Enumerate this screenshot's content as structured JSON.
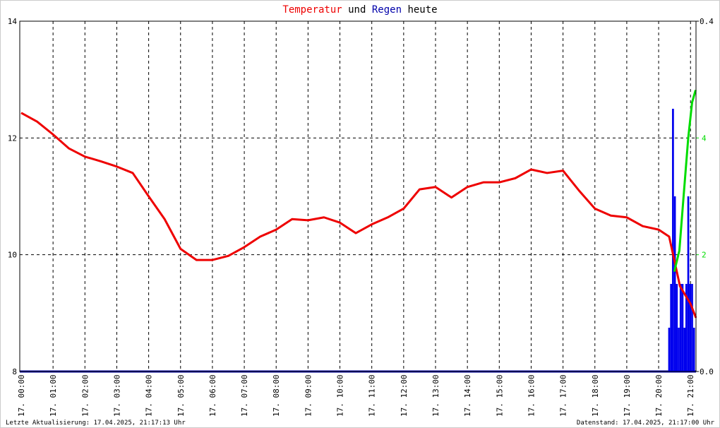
{
  "chart_data": {
    "type": "line",
    "title_connector": "und",
    "title_suffix": "heute",
    "footer_left": "Letzte Aktualisierung: 17.04.2025, 21:17:13 Uhr",
    "footer_right": "Datenstand: 17.04.2025, 21:17:00 Uhr",
    "xlim": [
      0,
      21.15
    ],
    "xticks": [
      {
        "value": 0,
        "label": "17. 00:00"
      },
      {
        "value": 1,
        "label": "17. 01:00"
      },
      {
        "value": 2,
        "label": "17. 02:00"
      },
      {
        "value": 3,
        "label": "17. 03:00"
      },
      {
        "value": 4,
        "label": "17. 04:00"
      },
      {
        "value": 5,
        "label": "17. 05:00"
      },
      {
        "value": 6,
        "label": "17. 06:00"
      },
      {
        "value": 7,
        "label": "17. 07:00"
      },
      {
        "value": 8,
        "label": "17. 08:00"
      },
      {
        "value": 9,
        "label": "17. 09:00"
      },
      {
        "value": 10,
        "label": "17. 10:00"
      },
      {
        "value": 11,
        "label": "17. 11:00"
      },
      {
        "value": 12,
        "label": "17. 12:00"
      },
      {
        "value": 13,
        "label": "17. 13:00"
      },
      {
        "value": 14,
        "label": "17. 14:00"
      },
      {
        "value": 15,
        "label": "17. 15:00"
      },
      {
        "value": 16,
        "label": "17. 16:00"
      },
      {
        "value": 17,
        "label": "17. 17:00"
      },
      {
        "value": 18,
        "label": "17. 18:00"
      },
      {
        "value": 19,
        "label": "17. 19:00"
      },
      {
        "value": 20,
        "label": "17. 20:00"
      },
      {
        "value": 21,
        "label": "17. 21:00"
      }
    ],
    "ylim": [
      8,
      14
    ],
    "yticks": [
      8,
      10,
      12,
      14
    ],
    "y2lim": [
      0,
      0.4
    ],
    "y2ticks": [
      {
        "value": 0,
        "label": "0.0"
      },
      0.4
    ],
    "y3lim": [
      0,
      6
    ],
    "y3ticks": [
      2,
      4
    ],
    "y3color": "#00dd00",
    "grid": true,
    "series": [
      {
        "name": "Temperatur",
        "color": "#ee0000",
        "kind": "line",
        "x": [
          0,
          0.5,
          1,
          1.5,
          2,
          2.5,
          3,
          3.5,
          4,
          4.5,
          5,
          5.5,
          6,
          6.5,
          7,
          7.5,
          8,
          8.5,
          9,
          9.5,
          10,
          10.5,
          11,
          11.5,
          12,
          12.5,
          13,
          13.5,
          14,
          14.5,
          15,
          15.5,
          16,
          16.5,
          17,
          17.5,
          18,
          18.5,
          19,
          19.5,
          20,
          20.33,
          20.67,
          21,
          21.17
        ],
        "values": [
          12.43,
          12.28,
          12.06,
          11.82,
          11.68,
          11.6,
          11.51,
          11.4,
          11.0,
          10.61,
          10.1,
          9.91,
          9.91,
          9.98,
          10.13,
          10.31,
          10.43,
          10.61,
          10.59,
          10.64,
          10.55,
          10.37,
          10.52,
          10.64,
          10.79,
          11.12,
          11.16,
          10.98,
          11.16,
          11.24,
          11.24,
          11.31,
          11.46,
          11.4,
          11.44,
          11.1,
          10.79,
          10.67,
          10.64,
          10.49,
          10.43,
          10.31,
          9.46,
          9.16,
          8.92
        ]
      },
      {
        "name": "Regen",
        "color": "#0000ee",
        "kind": "bar",
        "axis": "y2",
        "x": [
          20.3,
          20.36,
          20.42,
          20.48,
          20.54,
          20.6,
          20.66,
          20.72,
          20.78,
          20.84,
          20.9,
          20.96,
          21.02,
          21.08
        ],
        "values": [
          0.05,
          0.1,
          0.3,
          0.2,
          0.1,
          0.05,
          0.1,
          0.1,
          0.05,
          0.1,
          0.2,
          0.1,
          0.1,
          0.05
        ]
      },
      {
        "color": "#00dd00",
        "kind": "line",
        "axis": "y3",
        "x": [
          20.49,
          20.65,
          20.78,
          20.93,
          21.05,
          21.16
        ],
        "values": [
          1.71,
          2.07,
          2.98,
          4.01,
          4.61,
          4.82
        ]
      }
    ]
  }
}
